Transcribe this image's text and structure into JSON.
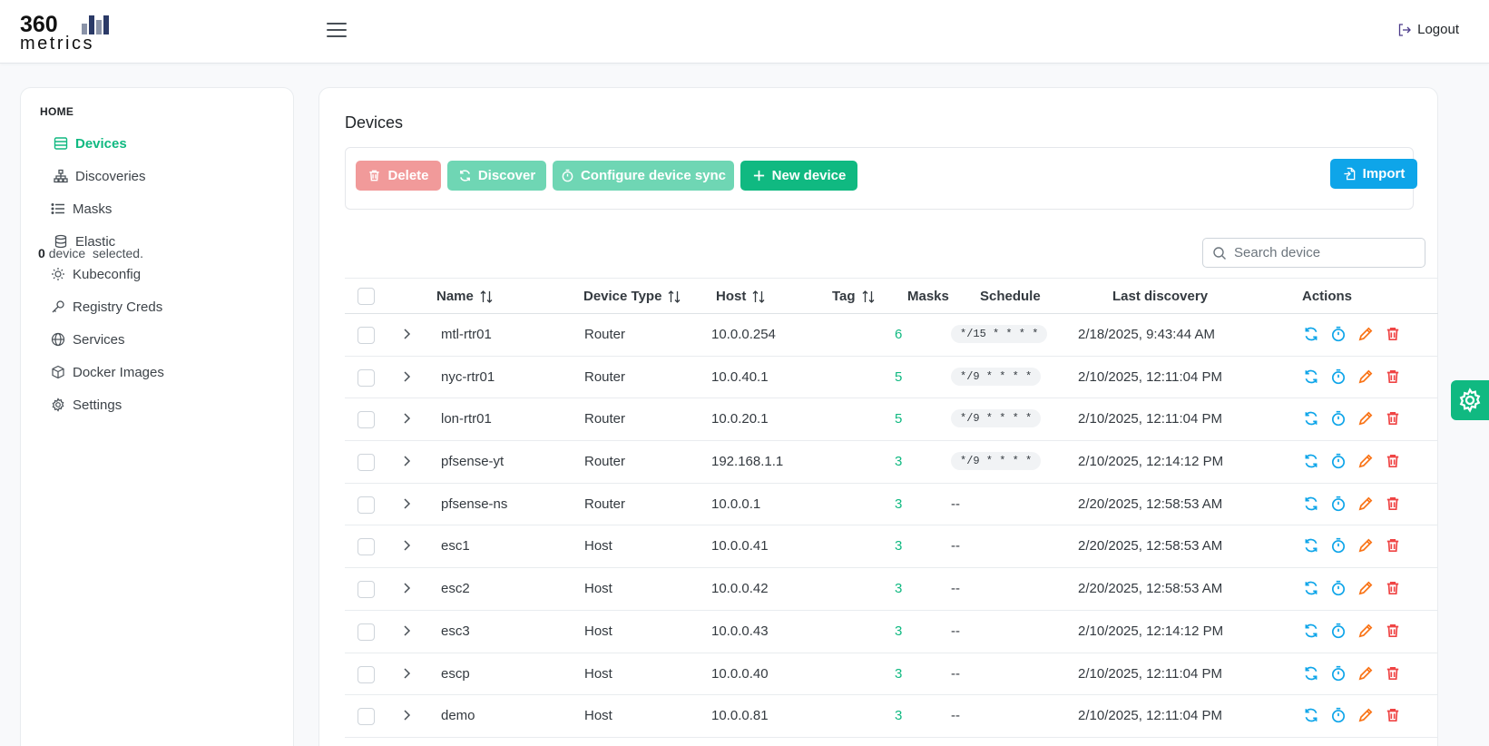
{
  "brand": {
    "logo_top": "360",
    "logo_bottom": "metrics"
  },
  "header": {
    "logout_label": "Logout"
  },
  "sidebar": {
    "heading": "HOME",
    "items": [
      {
        "label": "Devices",
        "icon": "server-icon",
        "active": true
      },
      {
        "label": "Discoveries",
        "icon": "sitemap-icon"
      },
      {
        "label": "Masks",
        "icon": "list-icon"
      },
      {
        "label": "Elastic",
        "icon": "database-icon"
      },
      {
        "label": "Kubeconfig",
        "icon": "sun-icon"
      },
      {
        "label": "Registry Creds",
        "icon": "key-icon"
      },
      {
        "label": "Services",
        "icon": "globe-icon"
      },
      {
        "label": "Docker Images",
        "icon": "box-icon"
      },
      {
        "label": "Settings",
        "icon": "gear-icon"
      }
    ]
  },
  "main": {
    "title": "Devices",
    "toolbar": {
      "delete_label": "Delete",
      "discover_label": "Discover",
      "sync_label": "Configure device sync",
      "new_label": "New device",
      "import_label": "Import"
    },
    "selection": {
      "count": "0",
      "unit": "device",
      "suffix": "selected."
    },
    "search": {
      "placeholder": "Search device",
      "value": ""
    },
    "columns": {
      "name": "Name",
      "type": "Device Type",
      "host": "Host",
      "tag": "Tag",
      "masks": "Masks",
      "schedule": "Schedule",
      "last": "Last discovery",
      "actions": "Actions"
    },
    "rows": [
      {
        "name": "mtl-rtr01",
        "type": "Router",
        "host": "10.0.0.254",
        "tag": "",
        "masks": "6",
        "schedule": "*/15 * * * *",
        "last": "2/18/2025, 9:43:44 AM"
      },
      {
        "name": "nyc-rtr01",
        "type": "Router",
        "host": "10.0.40.1",
        "tag": "",
        "masks": "5",
        "schedule": "*/9 * * * *",
        "last": "2/10/2025, 12:11:04 PM"
      },
      {
        "name": "lon-rtr01",
        "type": "Router",
        "host": "10.0.20.1",
        "tag": "",
        "masks": "5",
        "schedule": "*/9 * * * *",
        "last": "2/10/2025, 12:11:04 PM"
      },
      {
        "name": "pfsense-yt",
        "type": "Router",
        "host": "192.168.1.1",
        "tag": "",
        "masks": "3",
        "schedule": "*/9 * * * *",
        "last": "2/10/2025, 12:14:12 PM"
      },
      {
        "name": "pfsense-ns",
        "type": "Router",
        "host": "10.0.0.1",
        "tag": "",
        "masks": "3",
        "schedule": "--",
        "last": "2/20/2025, 12:58:53 AM"
      },
      {
        "name": "esc1",
        "type": "Host",
        "host": "10.0.0.41",
        "tag": "",
        "masks": "3",
        "schedule": "--",
        "last": "2/20/2025, 12:58:53 AM"
      },
      {
        "name": "esc2",
        "type": "Host",
        "host": "10.0.0.42",
        "tag": "",
        "masks": "3",
        "schedule": "--",
        "last": "2/20/2025, 12:58:53 AM"
      },
      {
        "name": "esc3",
        "type": "Host",
        "host": "10.0.0.43",
        "tag": "",
        "masks": "3",
        "schedule": "--",
        "last": "2/10/2025, 12:14:12 PM"
      },
      {
        "name": "escp",
        "type": "Host",
        "host": "10.0.0.40",
        "tag": "",
        "masks": "3",
        "schedule": "--",
        "last": "2/10/2025, 12:11:04 PM"
      },
      {
        "name": "demo",
        "type": "Host",
        "host": "10.0.0.81",
        "tag": "",
        "masks": "3",
        "schedule": "--",
        "last": "2/10/2025, 12:11:04 PM"
      }
    ]
  },
  "colors": {
    "accent": "#10b981",
    "danger": "#ef4444",
    "info": "#0ea5e9",
    "edit": "#f97316"
  }
}
